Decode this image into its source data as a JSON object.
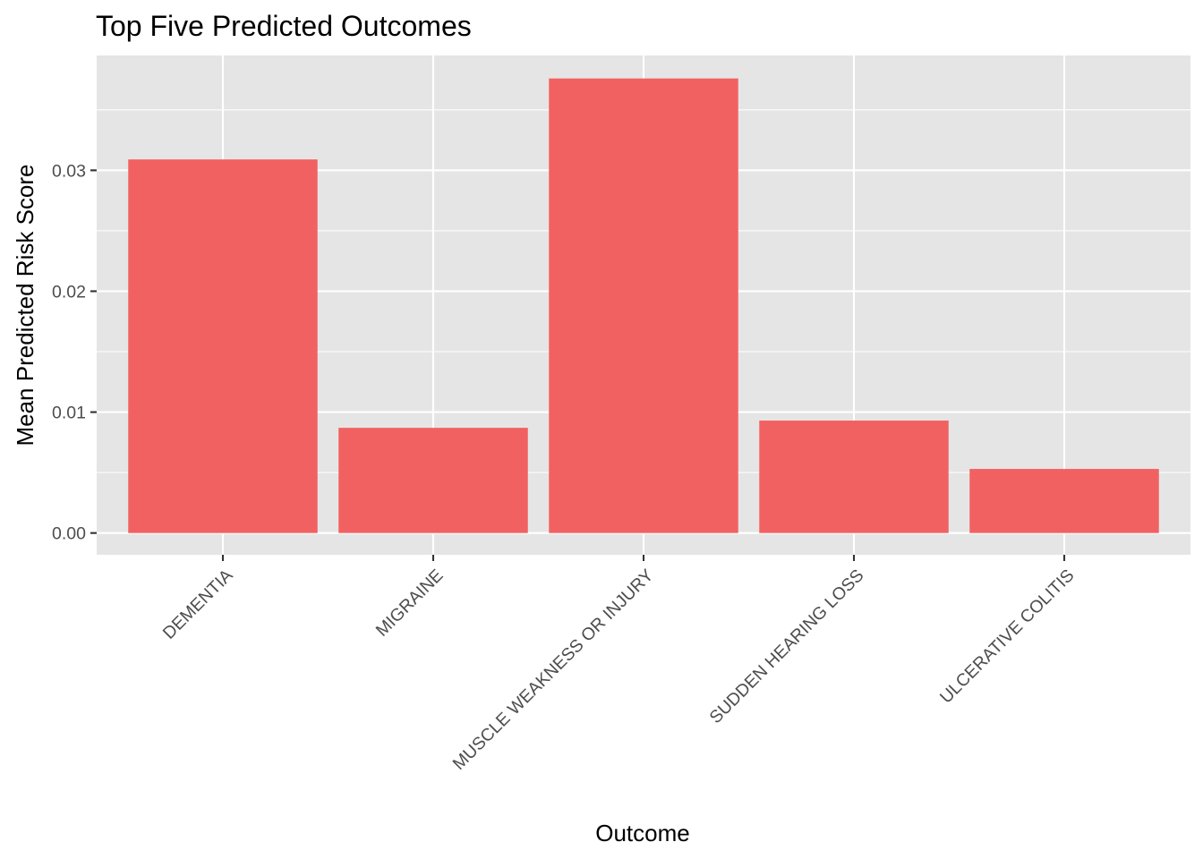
{
  "chart_data": {
    "type": "bar",
    "title": "Top Five Predicted Outcomes",
    "xlabel": "Outcome",
    "ylabel": "Mean Predicted Risk Score",
    "categories": [
      "DEMENTIA",
      "MIGRAINE",
      "MUSCLE WEAKNESS OR INJURY",
      "SUDDEN HEARING LOSS",
      "ULCERATIVE COLITIS"
    ],
    "values": [
      0.0309,
      0.0087,
      0.0376,
      0.0093,
      0.0053
    ],
    "ylim": [
      -0.0018,
      0.0395
    ],
    "yticks": [
      0,
      0.01,
      0.02,
      0.03
    ],
    "ytick_labels": [
      "0.00",
      "0.01",
      "0.02",
      "0.03"
    ],
    "grid": true,
    "legend": "none",
    "bar_color": "#F26161",
    "panel_color": "#E5E5E5"
  }
}
